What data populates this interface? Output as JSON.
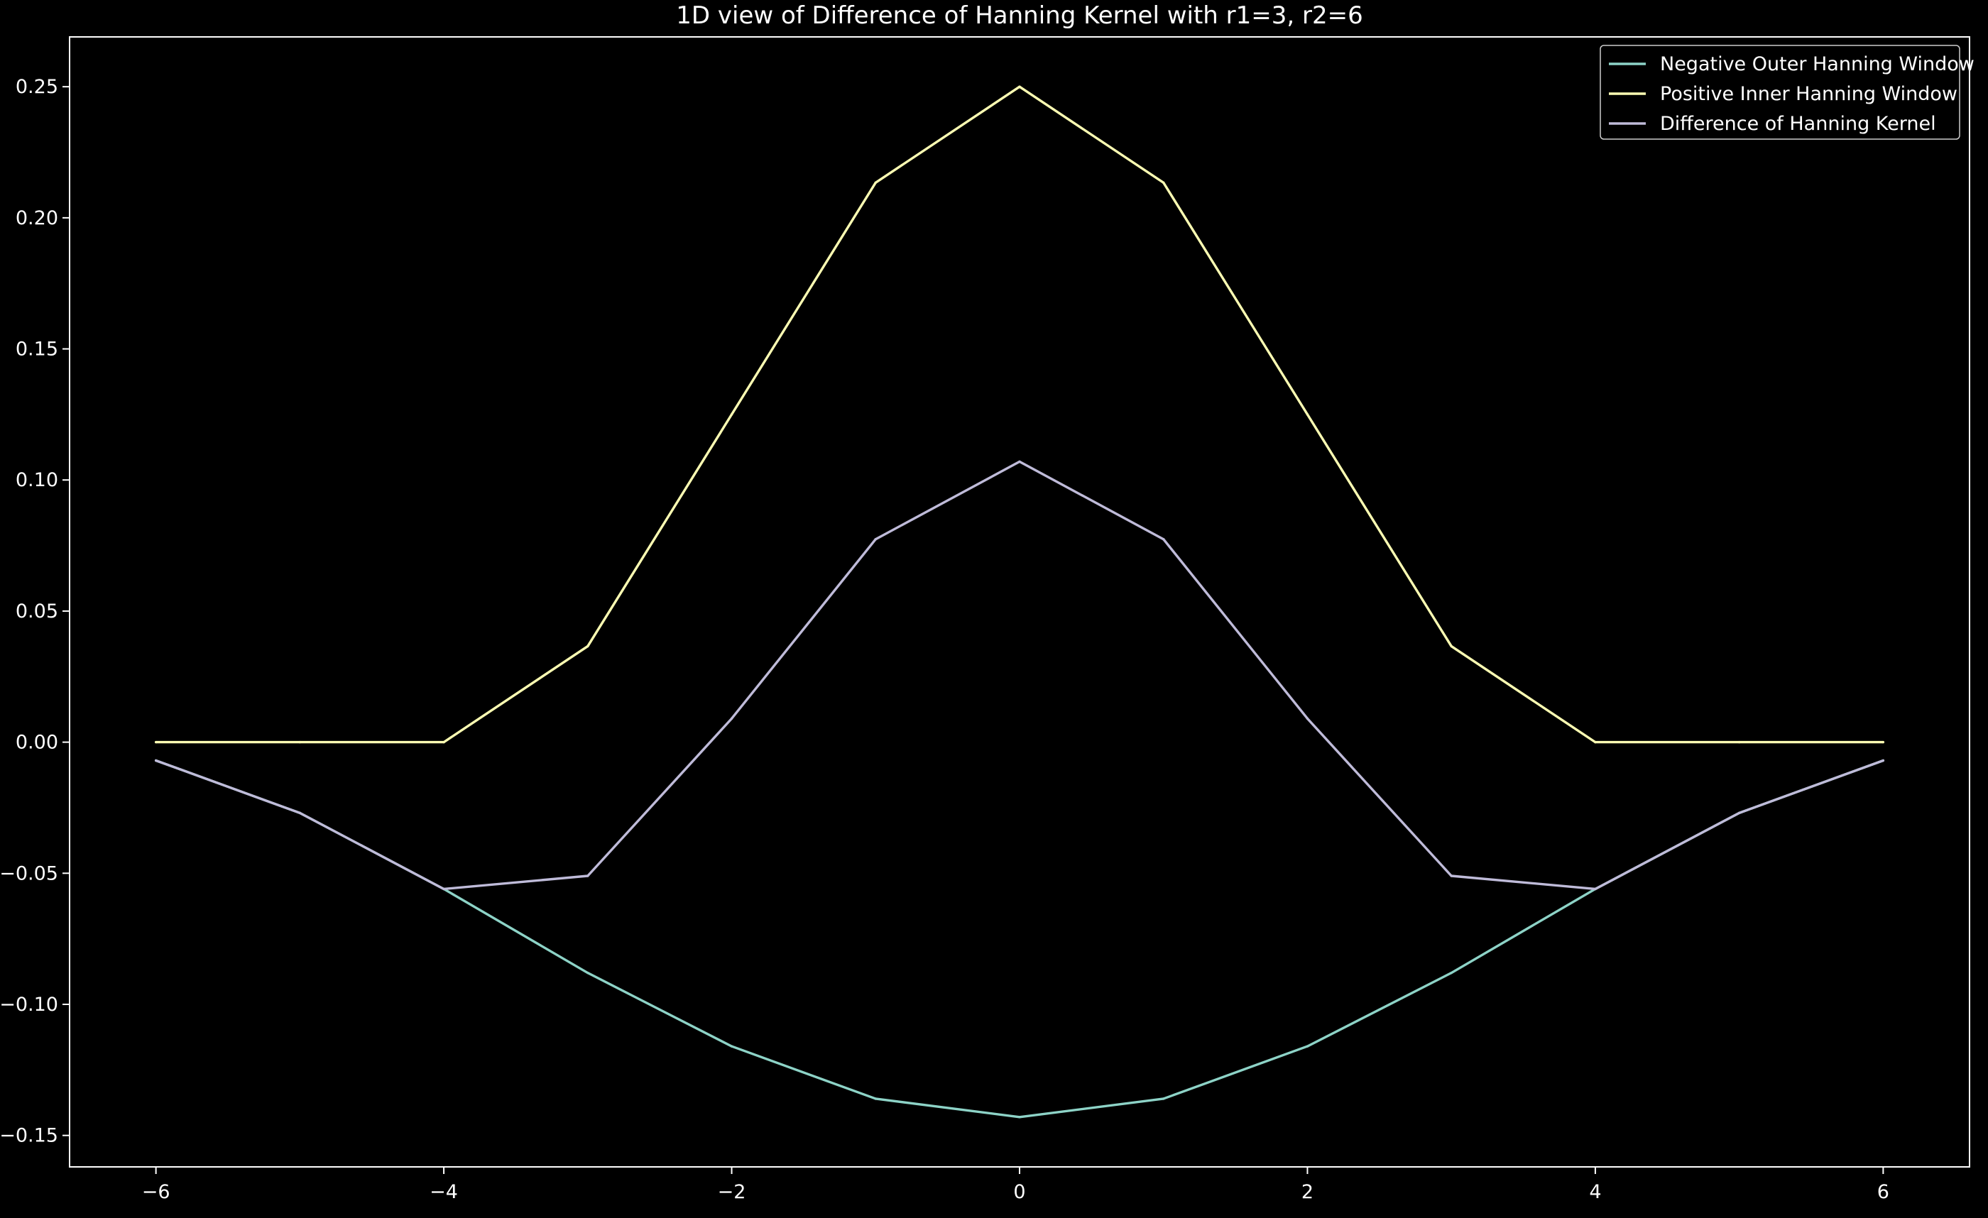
{
  "chart_data": {
    "type": "line",
    "title": "1D view of Difference of Hanning Kernel with r1=3, r2=6",
    "xlabel": "",
    "ylabel": "",
    "xlim": [
      -6.6,
      6.6
    ],
    "ylim": [
      -0.162,
      0.269
    ],
    "x_ticks": [
      -6,
      -4,
      -2,
      0,
      2,
      4,
      6
    ],
    "x_tick_labels": [
      "−6",
      "−4",
      "−2",
      "0",
      "2",
      "4",
      "6"
    ],
    "y_ticks": [
      -0.15,
      -0.1,
      -0.05,
      0.0,
      0.05,
      0.1,
      0.15,
      0.2,
      0.25
    ],
    "y_tick_labels": [
      "−0.15",
      "−0.10",
      "−0.05",
      "0.00",
      "0.05",
      "0.10",
      "0.15",
      "0.20",
      "0.25"
    ],
    "grid": false,
    "legend_position": "top-right",
    "x": [
      -6,
      -5,
      -4,
      -3,
      -2,
      -1,
      0,
      1,
      2,
      3,
      4,
      5,
      6
    ],
    "series": [
      {
        "name": "Negative Outer Hanning Window",
        "color": "#8dd3c7",
        "values": [
          -0.007,
          -0.027,
          -0.056,
          -0.088,
          -0.116,
          -0.136,
          -0.143,
          -0.136,
          -0.116,
          -0.088,
          -0.056,
          -0.027,
          -0.007
        ]
      },
      {
        "name": "Positive Inner Hanning Window",
        "color": "#feffb3",
        "values": [
          0.0,
          0.0,
          0.0,
          0.0366,
          0.125,
          0.2134,
          0.25,
          0.2134,
          0.125,
          0.0366,
          0.0,
          0.0,
          0.0
        ]
      },
      {
        "name": "Difference of Hanning Kernel",
        "color": "#bfbbd9",
        "values": [
          -0.007,
          -0.027,
          -0.056,
          -0.051,
          0.009,
          0.0774,
          0.107,
          0.0774,
          0.009,
          -0.051,
          -0.056,
          -0.027,
          -0.007
        ]
      }
    ]
  }
}
